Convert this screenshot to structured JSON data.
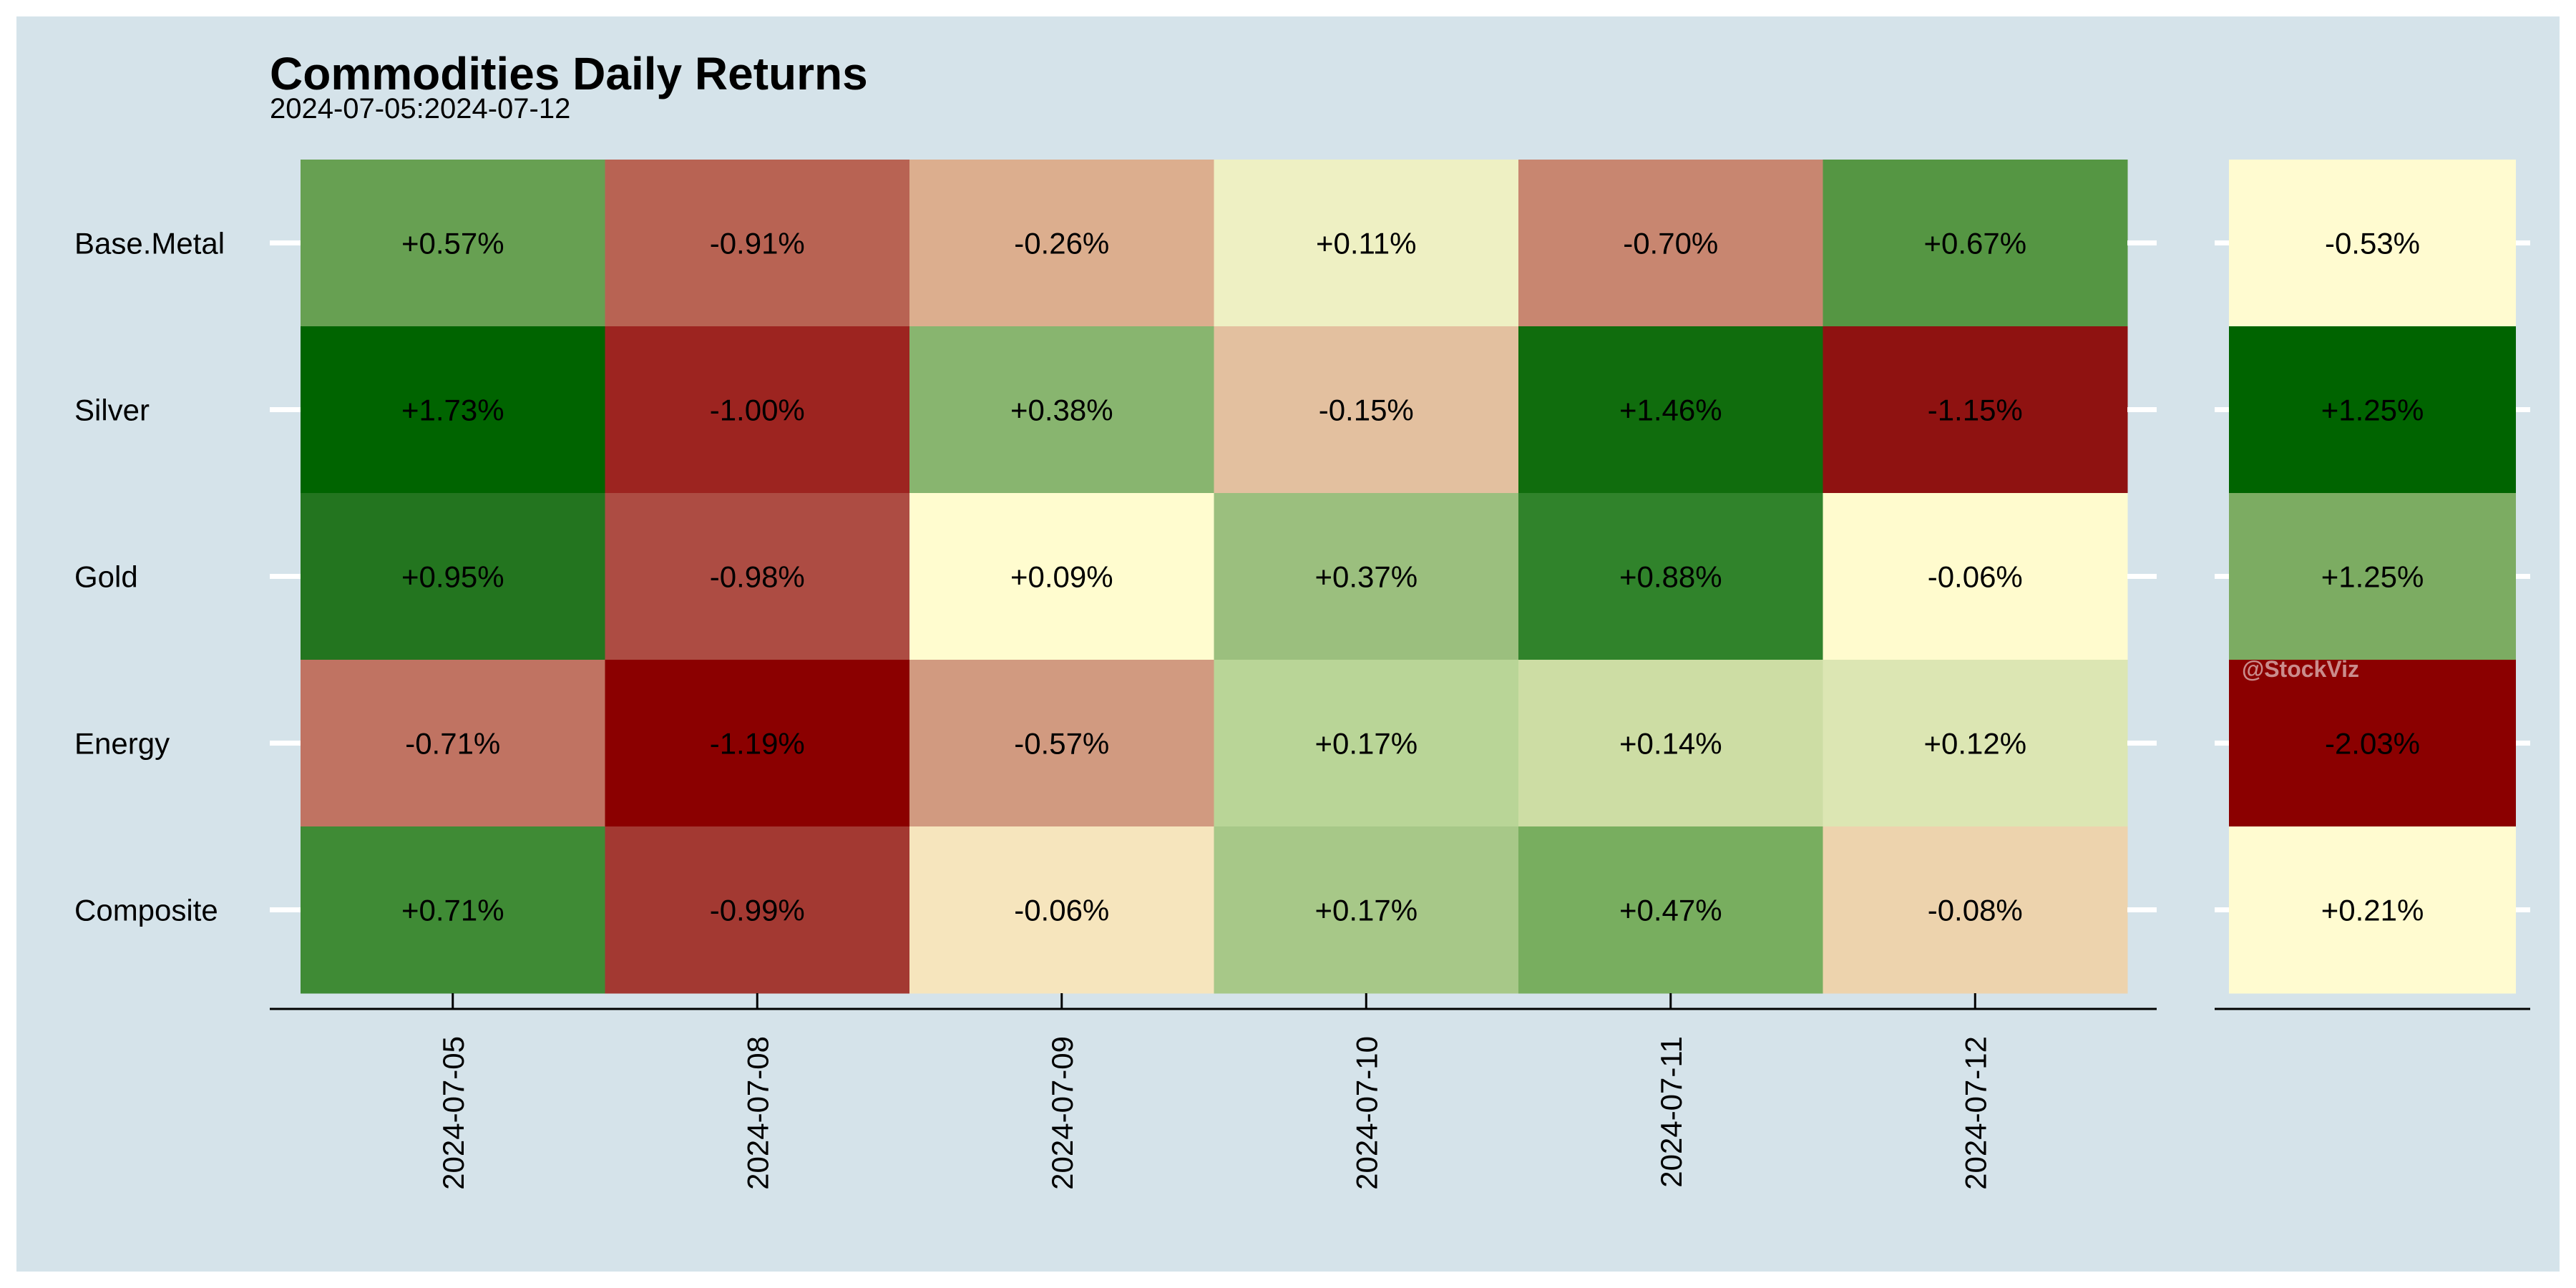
{
  "chart_data": {
    "type": "heatmap",
    "title": "Commodities Daily Returns",
    "subtitle": "2024-07-05:2024-07-12",
    "rows": [
      "Base.Metal",
      "Silver",
      "Gold",
      "Energy",
      "Composite"
    ],
    "columns": [
      "2024-07-05",
      "2024-07-08",
      "2024-07-09",
      "2024-07-10",
      "2024-07-11",
      "2024-07-12"
    ],
    "values": [
      [
        0.57,
        -0.91,
        -0.26,
        0.11,
        -0.7,
        0.67
      ],
      [
        1.73,
        -1.0,
        0.38,
        -0.15,
        1.46,
        -1.15
      ],
      [
        0.95,
        -0.98,
        0.09,
        0.37,
        0.88,
        -0.06
      ],
      [
        -0.71,
        -1.19,
        -0.57,
        0.17,
        0.14,
        0.12
      ],
      [
        0.71,
        -0.99,
        -0.06,
        0.17,
        0.47,
        -0.08
      ]
    ],
    "labels": [
      [
        "+0.57%",
        "-0.91%",
        "-0.26%",
        "+0.11%",
        "-0.70%",
        "+0.67%"
      ],
      [
        "+1.73%",
        "-1.00%",
        "+0.38%",
        "-0.15%",
        "+1.46%",
        "-1.15%"
      ],
      [
        "+0.95%",
        "-0.98%",
        "+0.09%",
        "+0.37%",
        "+0.88%",
        "-0.06%"
      ],
      [
        "-0.71%",
        "-1.19%",
        "-0.57%",
        "+0.17%",
        "+0.14%",
        "+0.12%"
      ],
      [
        "+0.71%",
        "-0.99%",
        "-0.06%",
        "+0.17%",
        "+0.47%",
        "-0.08%"
      ]
    ],
    "colors": [
      [
        "#67a052",
        "#b86353",
        "#dcae8e",
        "#eef0c3",
        "#c88670",
        "#559643"
      ],
      [
        "#006400",
        "#9d2420",
        "#88b56f",
        "#e3c09f",
        "#106d0d",
        "#8f1211"
      ],
      [
        "#23751f",
        "#ad4c43",
        "#fffccf",
        "#9bbf7e",
        "#30832b",
        "#fffbce"
      ],
      [
        "#c07362",
        "#8b0000",
        "#d19a80",
        "#b9d597",
        "#cdddA4",
        "#dce6b3"
      ],
      [
        "#3f8b35",
        "#a33932",
        "#f6e5bd",
        "#a7c888",
        "#78ae5f",
        "#edd3ad"
      ]
    ],
    "summary": {
      "labels": [
        "-0.53%",
        "+1.25%",
        "+1.25%",
        "-2.03%",
        "+0.21%"
      ],
      "values": [
        -0.53,
        1.25,
        1.25,
        -2.03,
        0.21
      ],
      "colors": [
        "#fffbd0",
        "#006400",
        "#7cac62",
        "#8b0000",
        "#fffbd0"
      ]
    },
    "watermark": "@StockViz"
  }
}
